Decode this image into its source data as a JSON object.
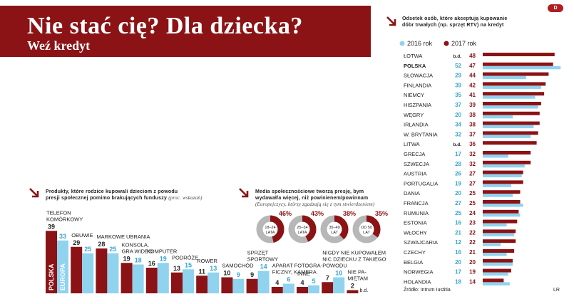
{
  "header": {
    "title": "Nie stać cię? Dla dziecka?",
    "subtitle": "Weź kredyt"
  },
  "logo_text": "D",
  "colors": {
    "dark_red": "#8b1316",
    "light_blue": "#8fd3ef",
    "text": "#222222"
  },
  "icons": {
    "section_arrow": "arrow-down-right-icon"
  },
  "products": {
    "caption_line1": "Produkty, które rodzice kupowali dzieciom z powodu",
    "caption_line2": "presji społecznej pomimo brakujących funduszy",
    "caption_note": "(proc. wskazań)"
  },
  "media": {
    "caption_line1": "Media społecznościowe tworzą presję, bym",
    "caption_line2": "wydawał/a więcej, niż powinienem/powinnam",
    "caption_note": "(Europejczycy, którzy zgadzają się z tym stwierdzeniem)"
  },
  "countries": {
    "caption_line1": "Odsetek osób, które akceptują kupowanie",
    "caption_line2": "dóbr trwałych (np. sprzęt RTV) na kredyt",
    "legend_2016": "2016 rok",
    "legend_2017": "2017 rok",
    "source": "Źródło: Intrum Iustitia",
    "footer_mark": "LR"
  },
  "chart_data": [
    {
      "type": "bar",
      "title": "Produkty, które rodzice kupowali dzieciom z powodu presji społecznej pomimo brakujących funduszy (proc. wskazań)",
      "series": [
        {
          "name": "POLSKA",
          "values": [
            39,
            29,
            28,
            19,
            16,
            13,
            11,
            10,
            9,
            4,
            4,
            7,
            2
          ]
        },
        {
          "name": "EUROPA",
          "values": [
            33,
            25,
            25,
            18,
            19,
            15,
            13,
            9,
            14,
            6,
            5,
            10,
            null
          ]
        }
      ],
      "value_labels": {
        "POLSKA": [
          "39",
          "29",
          "28",
          "19",
          "16",
          "13",
          "11",
          "10",
          "9",
          "4",
          "4",
          "7",
          "2"
        ],
        "EUROPA": [
          "33",
          "25",
          "25",
          "18",
          "19",
          "15",
          "13",
          "9",
          "14",
          "6",
          "5",
          "10",
          "b.d."
        ]
      },
      "categories": [
        [
          "TELEFON",
          "KOMÓRKOWY"
        ],
        [
          "OBUWIE"
        ],
        [
          "MARKOWE UBRANIA"
        ],
        [
          "KONSOLA,",
          "GRA WIDEO"
        ],
        [
          "KOMPUTER"
        ],
        [
          "PODRÓŻE"
        ],
        [
          "ROWER"
        ],
        [
          "SAMOCHÓD"
        ],
        [
          "SPRZĘT",
          "SPORTOWY"
        ],
        [
          "APARAT FOTOGRA-",
          "FICZNY, KAMERA"
        ],
        [
          "INNE"
        ],
        [
          "NIGDY NIE KUPOWAŁEM",
          "NIC DZIECKU Z TAKIEGO",
          "POWODU"
        ],
        [
          "NIE PA-",
          "MIĘTAM"
        ]
      ]
    },
    {
      "type": "pie",
      "title": "Media społecznościowe tworzą presję, bym wydawał/a więcej, niż powinienem/powinnam",
      "categories": [
        [
          "18–24",
          "LATA"
        ],
        [
          "25–34",
          "LATA"
        ],
        [
          "35–49",
          "LAT"
        ],
        [
          "OD 50",
          "LAT"
        ]
      ],
      "values": [
        46,
        43,
        38,
        35
      ],
      "value_labels": [
        "46%",
        "43%",
        "38%",
        "35%"
      ]
    },
    {
      "type": "bar",
      "orientation": "horizontal",
      "title": "Odsetek osób, które akceptują kupowanie dóbr trwałych (np. sprzęt RTV) na kredyt",
      "categories": [
        "ŁOTWA",
        "POLSKA",
        "SŁOWACJA",
        "FINLANDIA",
        "NIEMCY",
        "HISZPANIA",
        "WĘGRY",
        "IRLANDIA",
        "W. BRYTANIA",
        "LITWA",
        "GRECJA",
        "SZWECJA",
        "AUSTRIA",
        "PORTUGALIA",
        "DANIA",
        "FRANCJA",
        "RUMUNIA",
        "ESTONIA",
        "WŁOCHY",
        "SZWAJCARIA",
        "CZECHY",
        "BELGIA",
        "NORWEGIA",
        "HOLANDIA"
      ],
      "series": [
        {
          "name": "2016 rok",
          "values": [
            null,
            52,
            29,
            39,
            35,
            37,
            20,
            34,
            32,
            null,
            17,
            28,
            26,
            19,
            20,
            27,
            25,
            16,
            21,
            12,
            16,
            20,
            17,
            18
          ]
        },
        {
          "name": "2017 rok",
          "values": [
            48,
            47,
            44,
            42,
            41,
            39,
            38,
            38,
            37,
            36,
            32,
            32,
            27,
            27,
            25,
            25,
            24,
            23,
            22,
            22,
            21,
            20,
            19,
            14
          ]
        }
      ],
      "value_labels": {
        "2016 rok": [
          "b.d.",
          "52",
          "29",
          "39",
          "35",
          "37",
          "20",
          "34",
          "32",
          "b.d.",
          "17",
          "28",
          "26",
          "19",
          "20",
          "27",
          "25",
          "16",
          "21",
          "12",
          "16",
          "20",
          "17",
          "18"
        ],
        "2017 rok": [
          "48",
          "47",
          "44",
          "42",
          "41",
          "39",
          "38",
          "38",
          "37",
          "36",
          "32",
          "32",
          "27",
          "27",
          "25",
          "25",
          "24",
          "23",
          "22",
          "22",
          "21",
          "20",
          "19",
          "14"
        ]
      },
      "xlim": [
        0,
        52
      ]
    }
  ]
}
